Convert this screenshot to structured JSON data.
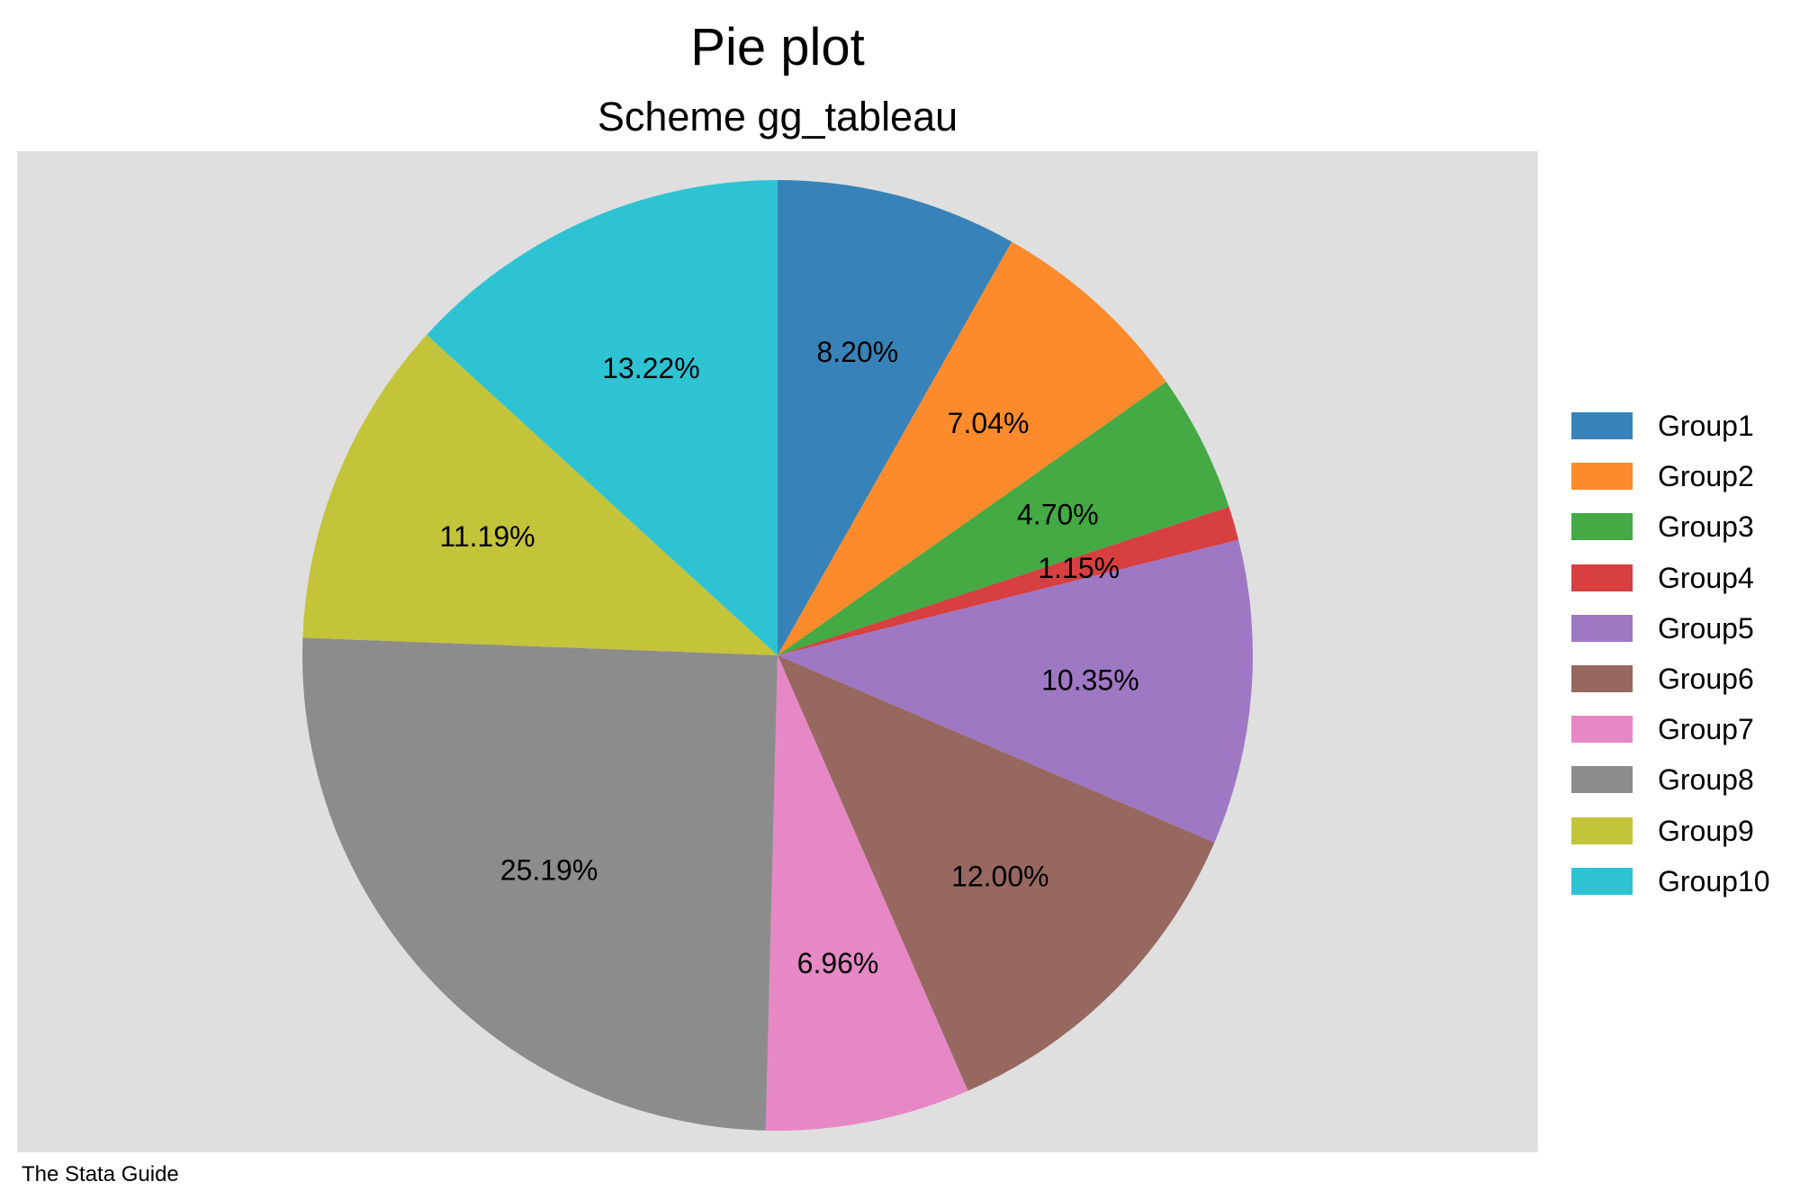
{
  "colors": {
    "plot_background": "#dfdfdf",
    "page_background": "#ffffff",
    "label_text": "#000000"
  },
  "chart_data": {
    "type": "pie",
    "title": "Pie plot",
    "subtitle": "Scheme gg_tableau",
    "legend_position": "right",
    "start_angle": "12 o'clock",
    "direction": "clockwise",
    "slices": [
      {
        "label": "Group1",
        "value": 8.2,
        "display": "8.20%",
        "color": "#3783b9"
      },
      {
        "label": "Group2",
        "value": 7.04,
        "display": "7.04%",
        "color": "#fd8b2c"
      },
      {
        "label": "Group3",
        "value": 4.7,
        "display": "4.70%",
        "color": "#43aa44"
      },
      {
        "label": "Group4",
        "value": 1.15,
        "display": "1.15%",
        "color": "#d73f40"
      },
      {
        "label": "Group5",
        "value": 10.35,
        "display": "10.35%",
        "color": "#9f78c4"
      },
      {
        "label": "Group6",
        "value": 12.0,
        "display": "12.00%",
        "color": "#976860"
      },
      {
        "label": "Group7",
        "value": 6.96,
        "display": "6.96%",
        "color": "#e688c6"
      },
      {
        "label": "Group8",
        "value": 25.19,
        "display": "25.19%",
        "color": "#8c8c8c"
      },
      {
        "label": "Group9",
        "value": 11.19,
        "display": "11.19%",
        "color": "#c3c43a"
      },
      {
        "label": "Group10",
        "value": 13.22,
        "display": "13.22%",
        "color": "#2ec3d3"
      }
    ]
  },
  "footer": {
    "credit": "The Stata Guide"
  }
}
